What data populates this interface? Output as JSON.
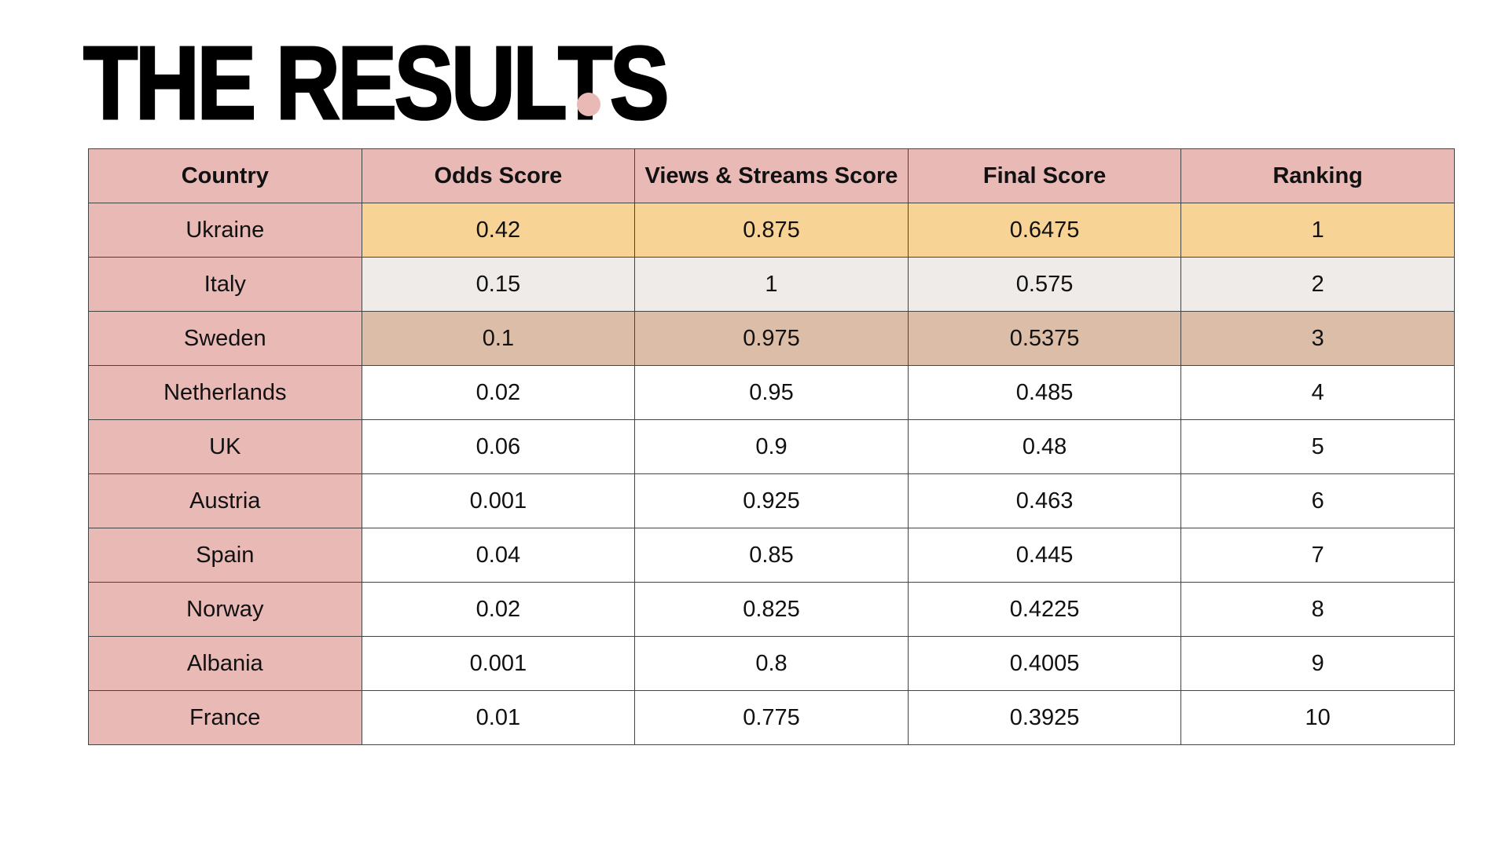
{
  "page": {
    "title": "THE RESULTS",
    "colors": {
      "accent_pink": "#e9b9b6",
      "gold": "#f8d396",
      "silver": "#efebe8",
      "bronze": "#dcbda7",
      "text": "#111111"
    }
  },
  "table": {
    "headers": [
      "Country",
      "Odds Score",
      "Views & Streams Score",
      "Final Score",
      "Ranking"
    ],
    "rows": [
      {
        "country": "Ukraine",
        "odds": "0.42",
        "views": "0.875",
        "final": "0.6475",
        "rank": "1"
      },
      {
        "country": "Italy",
        "odds": "0.15",
        "views": "1",
        "final": "0.575",
        "rank": "2"
      },
      {
        "country": "Sweden",
        "odds": "0.1",
        "views": "0.975",
        "final": "0.5375",
        "rank": "3"
      },
      {
        "country": "Netherlands",
        "odds": "0.02",
        "views": "0.95",
        "final": "0.485",
        "rank": "4"
      },
      {
        "country": "UK",
        "odds": "0.06",
        "views": "0.9",
        "final": "0.48",
        "rank": "5"
      },
      {
        "country": "Austria",
        "odds": "0.001",
        "views": "0.925",
        "final": "0.463",
        "rank": "6"
      },
      {
        "country": "Spain",
        "odds": "0.04",
        "views": "0.85",
        "final": "0.445",
        "rank": "7"
      },
      {
        "country": "Norway",
        "odds": "0.02",
        "views": "0.825",
        "final": "0.4225",
        "rank": "8"
      },
      {
        "country": "Albania",
        "odds": "0.001",
        "views": "0.8",
        "final": "0.4005",
        "rank": "9"
      },
      {
        "country": "France",
        "odds": "0.01",
        "views": "0.775",
        "final": "0.3925",
        "rank": "10"
      }
    ]
  }
}
